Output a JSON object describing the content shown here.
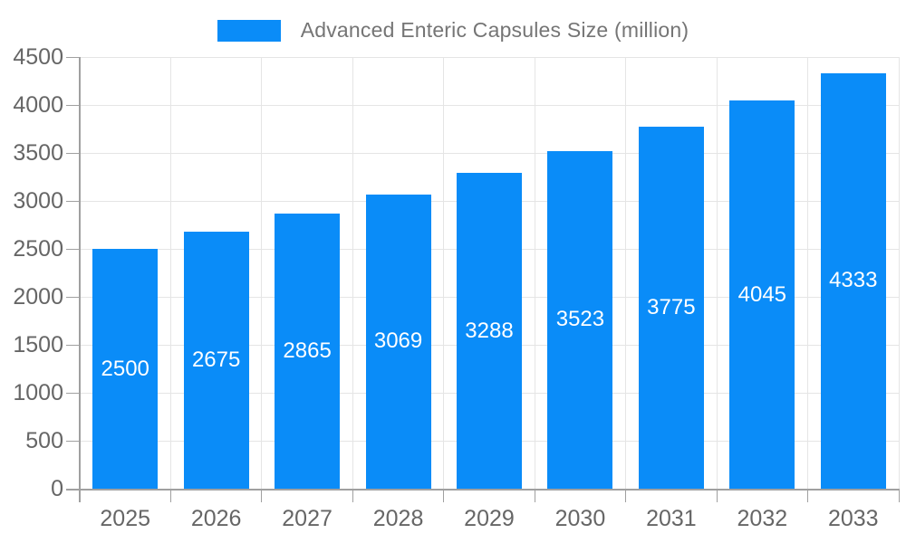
{
  "chart_data": {
    "type": "bar",
    "title": "Advanced Enteric Capsules Size (million)",
    "legend": "Advanced Enteric Capsules Size (million)",
    "legend_position": "top",
    "categories": [
      "2025",
      "2026",
      "2027",
      "2028",
      "2029",
      "2030",
      "2031",
      "2032",
      "2033"
    ],
    "values": [
      2500,
      2675,
      2865,
      3069,
      3288,
      3523,
      3775,
      4045,
      4333
    ],
    "xlabel": "",
    "ylabel": "",
    "ylim": [
      0,
      4500
    ],
    "ytick_step": 500,
    "grid": true,
    "value_labels": "inside-center"
  },
  "colors": {
    "bar": "#0a8cf8",
    "grid": "#e5e5e5",
    "axis": "#a0a0a0",
    "tick_text": "#666666",
    "legend_text": "#757575",
    "value_text": "#ffffff",
    "background": "#ffffff"
  }
}
